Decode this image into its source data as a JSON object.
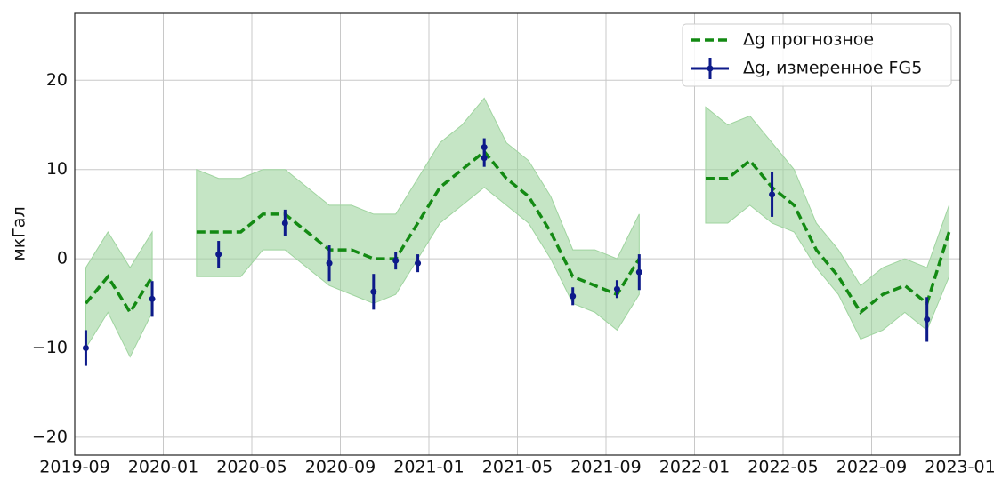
{
  "chart_data": {
    "type": "line",
    "ylabel": "мкГал",
    "xlim": [
      "2019-09",
      "2023-01"
    ],
    "xticks": [
      "2019-09",
      "2020-01",
      "2020-05",
      "2020-09",
      "2021-01",
      "2021-05",
      "2021-09",
      "2022-01",
      "2022-05",
      "2022-09",
      "2023-01"
    ],
    "ylim": [
      -22,
      27.5
    ],
    "yticks": [
      {
        "value": -20,
        "label": "−20"
      },
      {
        "value": -10,
        "label": "−10"
      },
      0,
      10,
      20
    ],
    "grid": true,
    "legend": "upper right",
    "series": [
      {
        "name": "Δg прогнозное",
        "color": "#138a13",
        "band_color": "#9fd49f",
        "x": [
          "2019-09",
          "2019-10",
          "2019-11",
          "2019-12",
          "2020-01",
          "2020-02",
          "2020-03",
          "2020-04",
          "2020-05",
          "2020-06",
          "2020-07",
          "2020-08",
          "2020-09",
          "2020-10",
          "2020-11",
          "2020-12",
          "2021-01",
          "2021-02",
          "2021-03",
          "2021-04",
          "2021-05",
          "2021-06",
          "2021-07",
          "2021-08",
          "2021-09",
          "2021-10",
          "2021-11",
          "2021-12",
          "2022-01",
          "2022-02",
          "2022-03",
          "2022-04",
          "2022-05",
          "2022-06",
          "2022-07",
          "2022-08",
          "2022-09",
          "2022-10",
          "2022-11",
          "2022-12"
        ],
        "values": [
          -5,
          -2,
          -6,
          -2,
          null,
          3,
          3,
          3,
          5,
          5,
          3,
          1,
          1,
          0,
          0,
          4,
          8,
          10,
          12,
          9,
          7,
          3,
          -2,
          -3,
          -4,
          0,
          null,
          null,
          9,
          9,
          11,
          8,
          6,
          1,
          -2,
          -6,
          -4,
          -3,
          -5,
          3
        ],
        "band_lower": [
          -10,
          -6,
          -11,
          -6,
          null,
          -2,
          -2,
          -2,
          1,
          1,
          -1,
          -3,
          -4,
          -5,
          -4,
          0,
          4,
          6,
          8,
          6,
          4,
          0,
          -5,
          -6,
          -8,
          -4,
          null,
          null,
          4,
          4,
          6,
          4,
          3,
          -1,
          -4,
          -9,
          -8,
          -6,
          -8,
          -2
        ],
        "band_upper": [
          -1,
          3,
          -1,
          3,
          null,
          10,
          9,
          9,
          10,
          10,
          8,
          6,
          6,
          5,
          5,
          9,
          13,
          15,
          18,
          13,
          11,
          7,
          1,
          1,
          0,
          5,
          null,
          null,
          17,
          15,
          16,
          13,
          10,
          4,
          1,
          -3,
          -1,
          0,
          -1,
          6
        ]
      },
      {
        "name": "Δg, измеренное FG5",
        "color": "#0d1a8a",
        "x": [
          "2019-09",
          "2019-12",
          "2020-03",
          "2020-06",
          "2020-08",
          "2020-10",
          "2020-11",
          "2020-12",
          "2021-03",
          "2021-03",
          "2021-07",
          "2021-09",
          "2021-10",
          "2022-04",
          "2022-11"
        ],
        "values": [
          -10,
          -4.5,
          0.5,
          4,
          -0.5,
          -3.7,
          -0.2,
          -0.5,
          12.5,
          11.3,
          -4.2,
          -3.4,
          -1.5,
          7.2,
          -6.8
        ],
        "errors": [
          2,
          2,
          1.5,
          1.5,
          2,
          2,
          1,
          1,
          1,
          1,
          1,
          1,
          2,
          2.5,
          2.5
        ]
      }
    ]
  }
}
